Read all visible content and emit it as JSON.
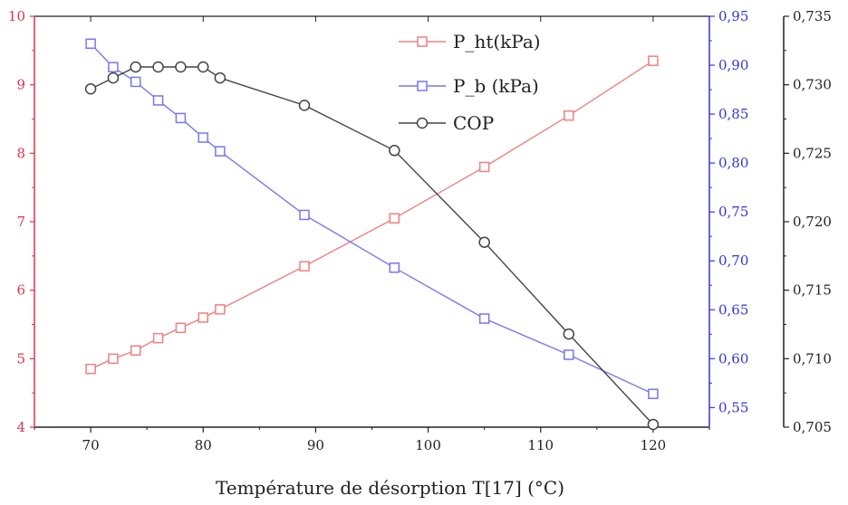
{
  "chart_data": {
    "type": "line",
    "title": "",
    "xlabel": "Température de désorption T[17] (°C)",
    "xlim": [
      65,
      125
    ],
    "x_ticks": [
      "70",
      "80",
      "90",
      "100",
      "110",
      "120"
    ],
    "axes": {
      "left": {
        "color": "#e0334a",
        "ylim": [
          4,
          10
        ],
        "ticks": [
          "4",
          "5",
          "6",
          "7",
          "8",
          "9",
          "10"
        ]
      },
      "right_inner": {
        "color": "#3434d8",
        "ylim": [
          0.53,
          0.95
        ],
        "ticks": [
          "0,55",
          "0,60",
          "0,65",
          "0,70",
          "0,75",
          "0,80",
          "0,85",
          "0,90",
          "0,95"
        ]
      },
      "right_outer": {
        "color": "#222222",
        "ylim": [
          0.705,
          0.735
        ],
        "ticks": [
          "0,705",
          "0,710",
          "0,715",
          "0,720",
          "0,725",
          "0,730",
          "0,735"
        ]
      }
    },
    "legend_position": "top-center",
    "series": [
      {
        "name": "P_ht(kPa)",
        "axis": "left",
        "color": "#f08080",
        "marker": "square",
        "x": [
          70,
          72,
          74,
          76,
          78,
          80,
          81.5,
          89,
          97,
          105,
          112.5,
          120
        ],
        "y": [
          4.85,
          5.0,
          5.12,
          5.3,
          5.45,
          5.6,
          5.72,
          6.35,
          7.05,
          7.8,
          8.55,
          9.35
        ]
      },
      {
        "name": "P_b (kPa)",
        "axis": "right_inner",
        "color": "#7777ee",
        "marker": "square",
        "x": [
          70,
          72,
          74,
          76,
          78,
          80,
          81.5,
          89,
          97,
          105,
          112.5,
          120
        ],
        "y": [
          0.922,
          0.898,
          0.883,
          0.864,
          0.846,
          0.826,
          0.812,
          0.747,
          0.693,
          0.641,
          0.604,
          0.564
        ]
      },
      {
        "name": "COP",
        "axis": "right_outer",
        "color": "#444444",
        "marker": "circle",
        "x": [
          70,
          72,
          74,
          76,
          78,
          80,
          81.5,
          89,
          97,
          105,
          112.5,
          120
        ],
        "y": [
          0.7297,
          0.7305,
          0.7313,
          0.7313,
          0.7313,
          0.7313,
          0.7305,
          0.7285,
          0.7252,
          0.7185,
          0.7118,
          0.7052
        ]
      }
    ]
  }
}
